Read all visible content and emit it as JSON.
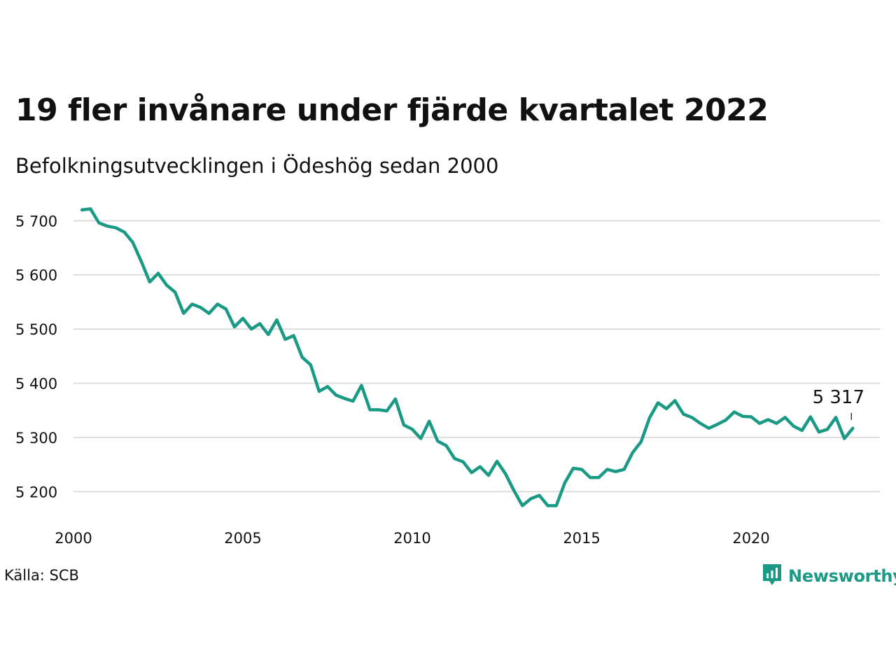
{
  "header": {
    "title": "19 fler invånare under fjärde kvartalet 2022",
    "subtitle": "Befolkningsutvecklingen i Ödeshög sedan 2000"
  },
  "footer": {
    "source": "Källa: SCB",
    "brand": "Newsworthy"
  },
  "colors": {
    "line": "#1a9a85",
    "brand": "#1a9a85",
    "grid": "#dddddd"
  },
  "chart_data": {
    "type": "line",
    "title": "19 fler invånare under fjärde kvartalet 2022",
    "subtitle": "Befolkningsutvecklingen i Ödeshög sedan 2000",
    "xlabel": "",
    "ylabel": "",
    "xlim": [
      2000,
      2023.8
    ],
    "ylim": [
      5150,
      5725
    ],
    "grid": true,
    "x_ticks": [
      2000,
      2005,
      2010,
      2015,
      2020
    ],
    "y_ticks": [
      5200,
      5300,
      5400,
      5500,
      5600,
      5700
    ],
    "y_tick_labels": [
      "5 200",
      "5 300",
      "5 400",
      "5 500",
      "5 600",
      "5 700"
    ],
    "end_label": "5 317",
    "series": [
      {
        "x": [
          2000.25,
          2000.5,
          2000.75,
          2001,
          2001.25,
          2001.5,
          2001.75,
          2002,
          2002.25,
          2002.5,
          2002.75,
          2003,
          2003.25,
          2003.5,
          2003.75,
          2004,
          2004.25,
          2004.5,
          2004.75,
          2005,
          2005.25,
          2005.5,
          2005.75,
          2006,
          2006.25,
          2006.5,
          2006.75,
          2007,
          2007.25,
          2007.5,
          2007.75,
          2008,
          2008.25,
          2008.5,
          2008.75,
          2009,
          2009.25,
          2009.5,
          2009.75,
          2010,
          2010.25,
          2010.5,
          2010.75,
          2011,
          2011.25,
          2011.5,
          2011.75,
          2012,
          2012.25,
          2012.5,
          2012.75,
          2013,
          2013.25,
          2013.5,
          2013.75,
          2014,
          2014.25,
          2014.5,
          2014.75,
          2015,
          2015.25,
          2015.5,
          2015.75,
          2016,
          2016.25,
          2016.5,
          2016.75,
          2017,
          2017.25,
          2017.5,
          2017.75,
          2018,
          2018.25,
          2018.5,
          2018.75,
          2019,
          2019.25,
          2019.5,
          2019.75,
          2020,
          2020.25,
          2020.5,
          2020.75,
          2021,
          2021.25,
          2021.5,
          2021.75,
          2022,
          2022.25,
          2022.5,
          2022.75,
          2023
        ],
        "values": [
          5720,
          5722,
          5696,
          5690,
          5687,
          5679,
          5660,
          5625,
          5587,
          5603,
          5581,
          5568,
          5529,
          5546,
          5540,
          5529,
          5546,
          5537,
          5504,
          5520,
          5500,
          5510,
          5490,
          5517,
          5481,
          5488,
          5448,
          5434,
          5385,
          5394,
          5378,
          5372,
          5367,
          5396,
          5351,
          5351,
          5349,
          5371,
          5323,
          5315,
          5298,
          5330,
          5293,
          5285,
          5261,
          5255,
          5235,
          5246,
          5230,
          5256,
          5233,
          5202,
          5174,
          5187,
          5193,
          5174,
          5174,
          5216,
          5243,
          5241,
          5226,
          5226,
          5241,
          5237,
          5241,
          5272,
          5292,
          5336,
          5364,
          5353,
          5368,
          5343,
          5337,
          5326,
          5317,
          5324,
          5332,
          5347,
          5339,
          5338,
          5326,
          5333,
          5326,
          5337,
          5321,
          5313,
          5338,
          5310,
          5315,
          5337,
          5298,
          5317
        ]
      }
    ]
  }
}
